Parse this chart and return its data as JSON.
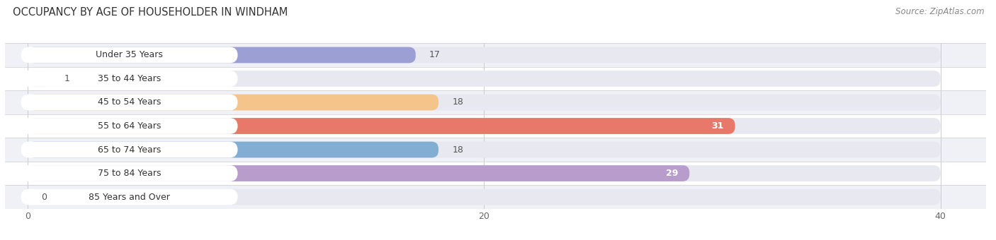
{
  "title": "OCCUPANCY BY AGE OF HOUSEHOLDER IN WINDHAM",
  "source": "Source: ZipAtlas.com",
  "categories": [
    "Under 35 Years",
    "35 to 44 Years",
    "45 to 54 Years",
    "55 to 64 Years",
    "65 to 74 Years",
    "75 to 84 Years",
    "85 Years and Over"
  ],
  "values": [
    17,
    1,
    18,
    31,
    18,
    29,
    0
  ],
  "colors": [
    "#9b9fd4",
    "#f4a7b9",
    "#f5c48a",
    "#e8796a",
    "#83aed4",
    "#b89dcc",
    "#7ecfcf"
  ],
  "xlim_max": 40,
  "xticks": [
    0,
    20,
    40
  ],
  "bar_height": 0.68,
  "bg_color": "#ffffff",
  "row_bg_colors": [
    "#f0f0f7",
    "#ffffff"
  ],
  "label_pill_color": "#ffffff",
  "title_fontsize": 10.5,
  "label_fontsize": 9,
  "value_fontsize": 9,
  "source_fontsize": 8.5,
  "value_inside_threshold": 29
}
